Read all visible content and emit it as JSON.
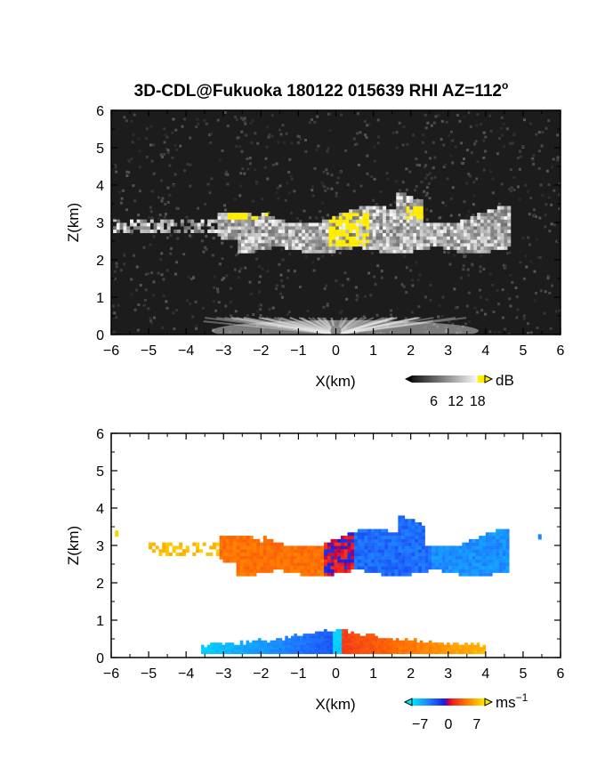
{
  "title": "3D-CDL@Fukuoka 180122 015639 RHI AZ=112",
  "title_superscript": "o",
  "chart_data": [
    {
      "type": "heatmap",
      "panel": "top",
      "variable": "reflectivity",
      "xlabel": "X(km)",
      "ylabel": "Z(km)",
      "xlim": [
        -6,
        6
      ],
      "ylim": [
        0,
        6
      ],
      "xticks": [
        -6,
        -5,
        -4,
        -3,
        -2,
        -1,
        0,
        1,
        2,
        3,
        4,
        5,
        6
      ],
      "yticks": [
        0,
        1,
        2,
        3,
        4,
        5,
        6
      ],
      "colorbar": {
        "unit": "dB",
        "ticks": [
          6,
          12,
          18
        ],
        "colormap": "grayscale, yellow above 18",
        "range": [
          0,
          20
        ]
      },
      "features": [
        {
          "kind": "cloud layer",
          "x_range": [
            -6,
            4.5
          ],
          "z_range": [
            2.1,
            4.0
          ],
          "strong_echo_cores_x": [
            -2.5,
            0.5,
            2.1
          ]
        },
        {
          "kind": "ground clutter fan",
          "x_range": [
            -3.5,
            4
          ],
          "z_range": [
            0,
            0.5
          ]
        }
      ]
    },
    {
      "type": "heatmap",
      "panel": "bottom",
      "variable": "doppler velocity",
      "xlabel": "X(km)",
      "ylabel": "Z(km)",
      "xlim": [
        -6,
        6
      ],
      "ylim": [
        0,
        6
      ],
      "xticks": [
        -6,
        -5,
        -4,
        -3,
        -2,
        -1,
        0,
        1,
        2,
        3,
        4,
        5,
        6
      ],
      "yticks": [
        0,
        1,
        2,
        3,
        4,
        5,
        6
      ],
      "colorbar": {
        "unit": "ms",
        "unit_exponent": "−1",
        "ticks": [
          -7,
          0,
          7
        ],
        "colormap": "cyan-blue-red-orange-yellow",
        "range": [
          -9,
          9
        ]
      },
      "features": [
        {
          "kind": "cloud layer",
          "x_range": [
            -5,
            4.5
          ],
          "z_range": [
            2.0,
            4.0
          ],
          "velocity": "positive (red/orange) at x<0, negative (blue) at x>0"
        },
        {
          "kind": "near-ground layer",
          "x_range": [
            -3.6,
            4.0
          ],
          "z_range": [
            0.1,
            1.0
          ],
          "velocity": "negative at x<0, positive at x>0"
        }
      ]
    }
  ]
}
